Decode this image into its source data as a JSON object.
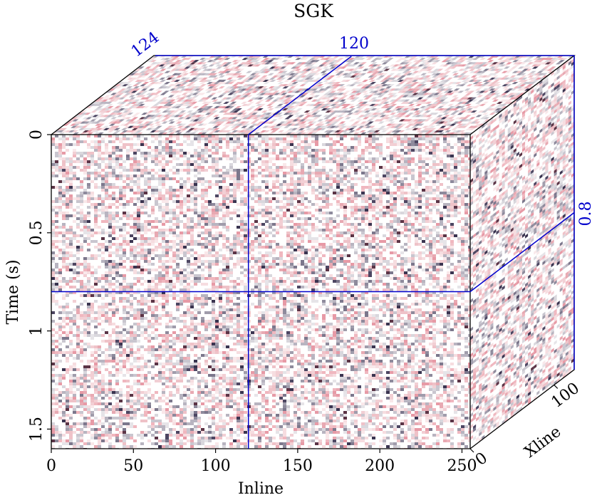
{
  "title": "SGK",
  "axes": {
    "inline": {
      "label": "Inline",
      "ticks": [
        "0",
        "50",
        "100",
        "150",
        "200",
        "250"
      ],
      "tick_values": [
        0,
        50,
        100,
        150,
        200,
        250
      ],
      "range": [
        0,
        255
      ]
    },
    "time": {
      "label": "Time (s)",
      "ticks": [
        "0",
        "0.5",
        "1",
        "1.5"
      ],
      "tick_values": [
        0,
        0.5,
        1,
        1.5
      ],
      "range": [
        0,
        1.6
      ]
    },
    "xline": {
      "label": "Xline",
      "ticks": [
        "0",
        "100"
      ],
      "tick_values": [
        0,
        100
      ],
      "range": [
        0,
        124
      ]
    }
  },
  "slices": {
    "inline_position": "120",
    "inline_value": 120,
    "xline_position": "124",
    "xline_value": 124,
    "time_position": "0.8",
    "time_value": 0.8
  },
  "colors": {
    "frame": "#000000",
    "slice_line": "#0000cc",
    "noise_light": "#f0c8cc",
    "noise_dark": "#3a3450",
    "background": "#ffffff"
  }
}
